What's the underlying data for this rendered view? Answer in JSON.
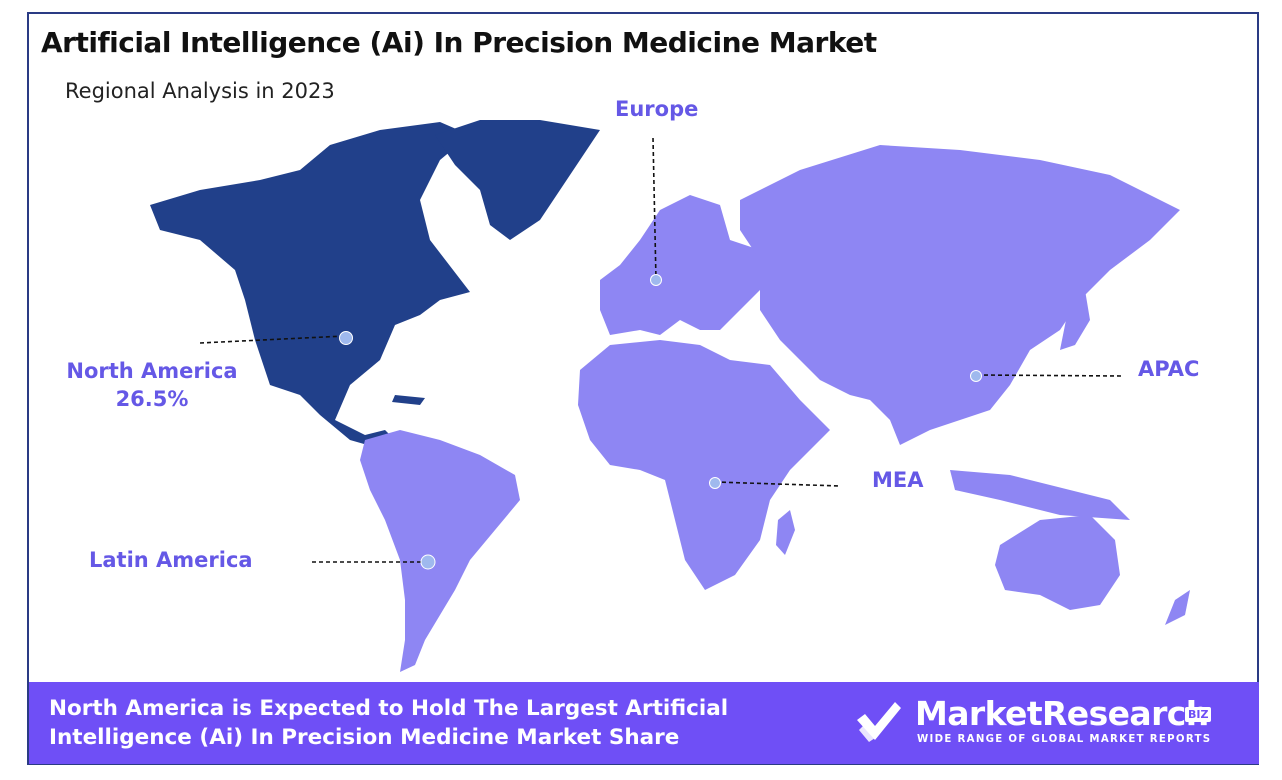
{
  "header": {
    "title": "Artificial Intelligence (Ai) In Precision Medicine Market",
    "subtitle": "Regional Analysis in 2023"
  },
  "regions": {
    "europe": {
      "name": "Europe"
    },
    "north_america": {
      "name": "North America",
      "share": "26.5%"
    },
    "apac": {
      "name": "APAC"
    },
    "mea": {
      "name": "MEA"
    },
    "latin_america": {
      "name": "Latin America"
    }
  },
  "banner": {
    "text": "North America is Expected to Hold The Largest Artificial Intelligence (Ai) In Precision Medicine Market Share"
  },
  "logo": {
    "name": "MarketResearch",
    "badge": "BIZ",
    "tagline": "WIDE RANGE OF GLOBAL MARKET REPORTS"
  },
  "colors": {
    "highlight_region": "#21408a",
    "other_regions": "#8e86f3",
    "label_text": "#6558e6",
    "banner_bg": "#6f4ff6",
    "frame": "#2a3b84"
  }
}
